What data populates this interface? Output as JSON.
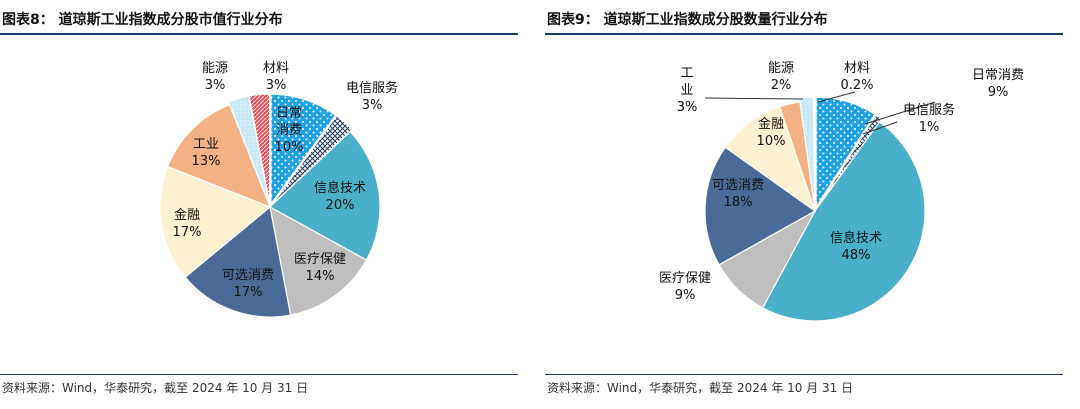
{
  "colors": {
    "title_rule": "#1f3864",
    "slice_fill": {
      "日常消费": "#1fa2e5",
      "电信服务": "#1f3864",
      "信息技术": "#4aafc8",
      "医疗保健": "#bfbfbf",
      "可选消费": "#4a6b97",
      "金融": "#fdf1cf",
      "工业": "#f4b183",
      "能源": "#c7e9f7",
      "材料": "#ef4f56"
    }
  },
  "charts": [
    {
      "title": "图表8：  道琼斯工业指数成分股市值行业分布",
      "source": "资料来源：Wind，华泰研究，截至 2024 年 10 月 31 日",
      "chart_data": {
        "type": "pie",
        "title": "图表8：  道琼斯工业指数成分股市值行业分布",
        "unit": "%",
        "start_angle_deg": 0,
        "direction": "clockwise",
        "slices": [
          {
            "name": "日常消费",
            "value": 10,
            "label": "10%"
          },
          {
            "name": "电信服务",
            "value": 3,
            "label": "3%"
          },
          {
            "name": "信息技术",
            "value": 20,
            "label": "20%"
          },
          {
            "name": "医疗保健",
            "value": 14,
            "label": "14%"
          },
          {
            "name": "可选消费",
            "value": 17,
            "label": "17%"
          },
          {
            "name": "金融",
            "value": 17,
            "label": "17%"
          },
          {
            "name": "工业",
            "value": 13,
            "label": "13%"
          },
          {
            "name": "能源",
            "value": 3,
            "label": "3%"
          },
          {
            "name": "材料",
            "value": 3,
            "label": "3%"
          }
        ],
        "legend": "none"
      }
    },
    {
      "title": "图表9：  道琼斯工业指数成分股数量行业分布",
      "source": "资料来源：Wind，华泰研究，截至 2024 年 10 月 31 日",
      "chart_data": {
        "type": "pie",
        "title": "图表9：  道琼斯工业指数成分股数量行业分布",
        "unit": "%",
        "start_angle_deg": 0,
        "direction": "clockwise",
        "slices": [
          {
            "name": "日常消费",
            "value": 9,
            "label": "9%"
          },
          {
            "name": "电信服务",
            "value": 1,
            "label": "1%"
          },
          {
            "name": "信息技术",
            "value": 48,
            "label": "48%"
          },
          {
            "name": "医疗保健",
            "value": 9,
            "label": "9%"
          },
          {
            "name": "可选消费",
            "value": 18,
            "label": "18%"
          },
          {
            "name": "金融",
            "value": 10,
            "label": "10%"
          },
          {
            "name": "工业",
            "value": 3,
            "label": "3%"
          },
          {
            "name": "能源",
            "value": 2,
            "label": "2%"
          },
          {
            "name": "材料",
            "value": 0.2,
            "label": "0.2%"
          }
        ],
        "legend": "none"
      }
    }
  ]
}
